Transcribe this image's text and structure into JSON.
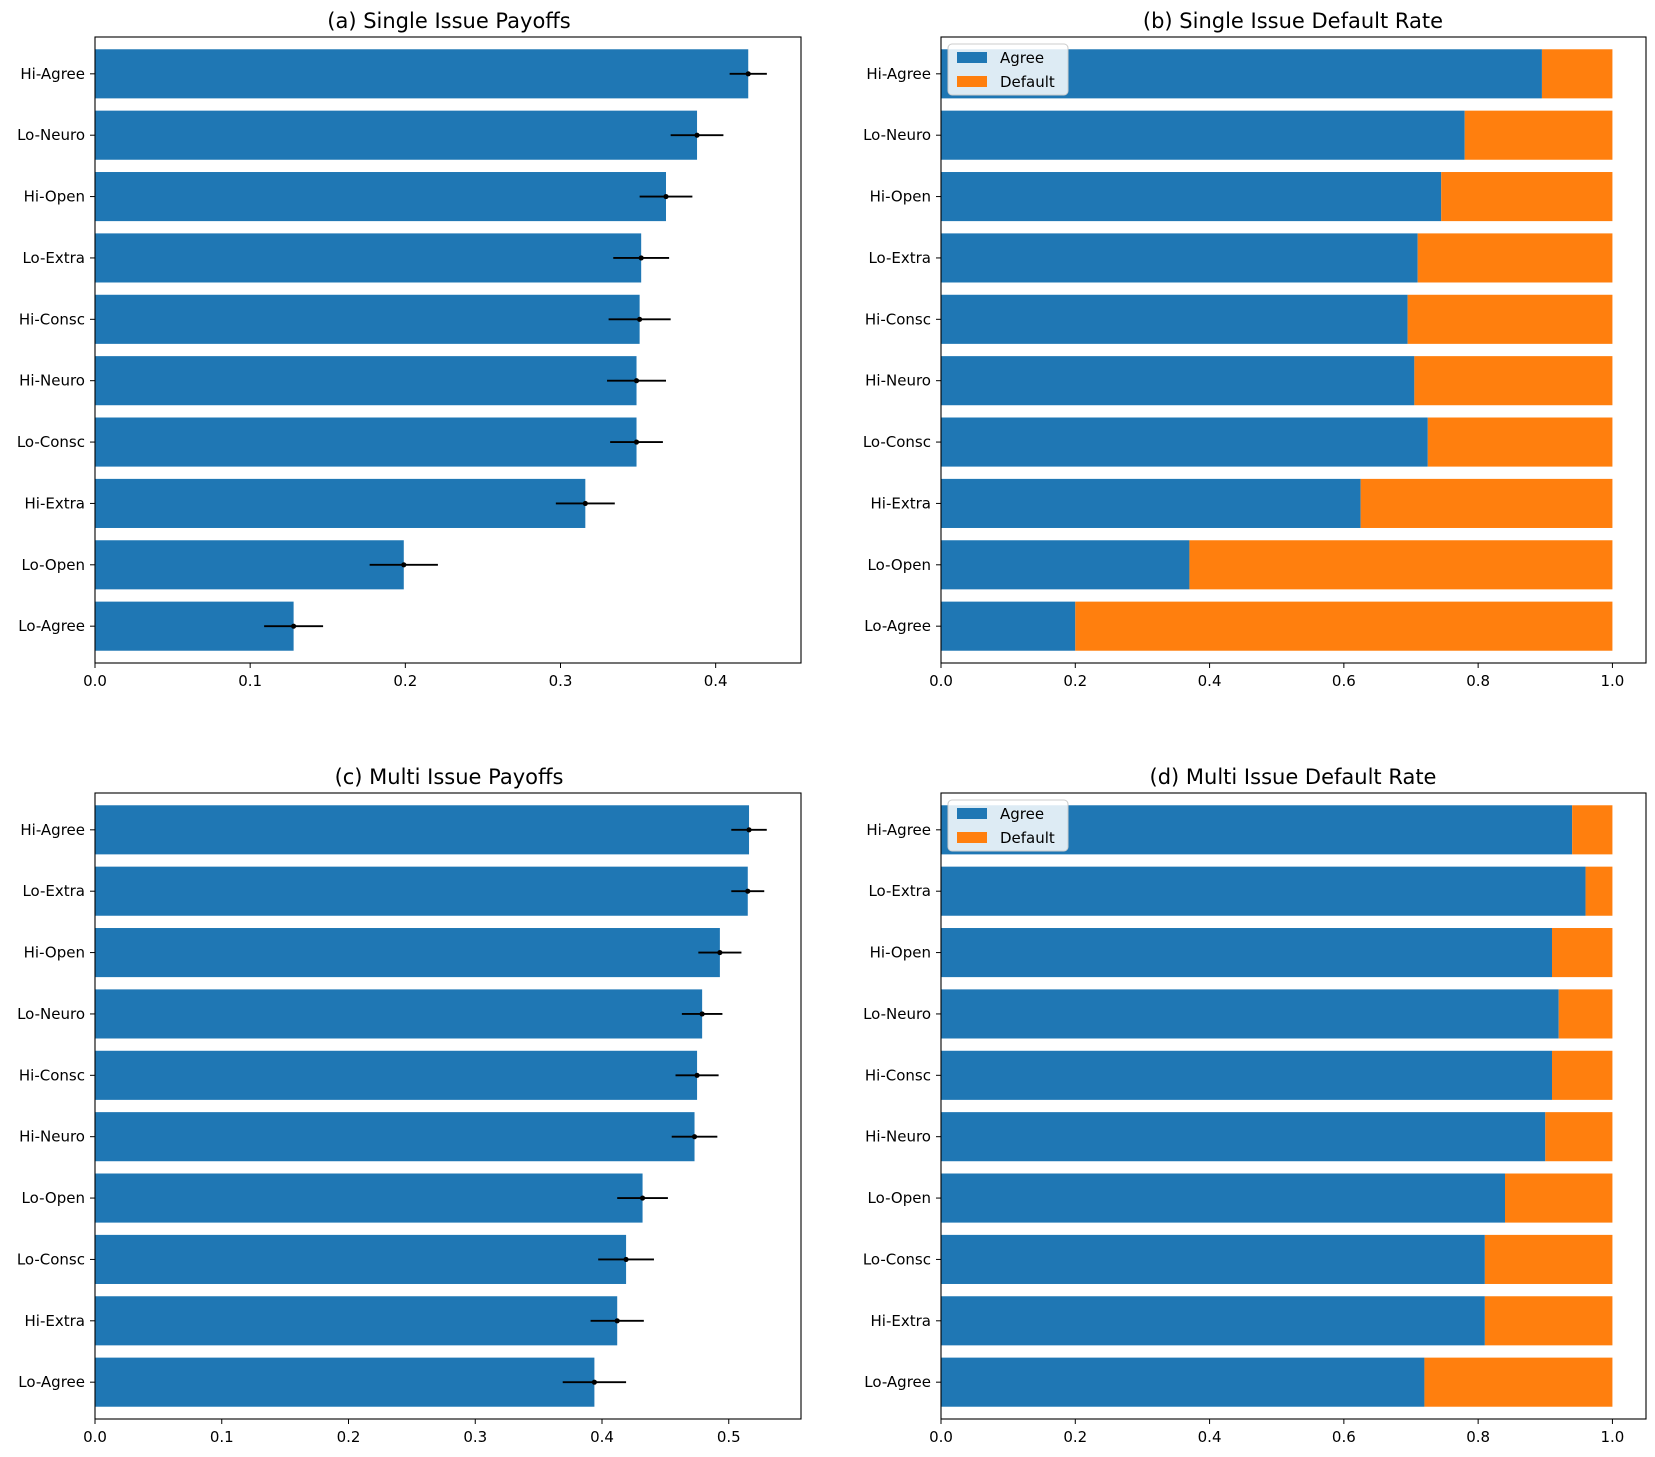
{
  "colors": {
    "agree": "#1f77b4",
    "default": "#ff7f0e",
    "error": "#000000"
  },
  "chart_data": [
    {
      "type": "bar",
      "orientation": "horizontal",
      "title": "(a) Single Issue Payoffs",
      "categories": [
        "Hi-Agree",
        "Lo-Neuro",
        "Hi-Open",
        "Lo-Extra",
        "Hi-Consc",
        "Hi-Neuro",
        "Lo-Consc",
        "Hi-Extra",
        "Lo-Open",
        "Lo-Agree"
      ],
      "values": [
        0.421,
        0.388,
        0.368,
        0.352,
        0.351,
        0.349,
        0.349,
        0.316,
        0.199,
        0.128
      ],
      "errors": [
        0.012,
        0.017,
        0.017,
        0.018,
        0.02,
        0.019,
        0.017,
        0.019,
        0.022,
        0.019
      ],
      "xlim": [
        0,
        0.455
      ],
      "xticks": [
        0.0,
        0.1,
        0.2,
        0.3,
        0.4
      ],
      "xtick_labels": [
        "0.0",
        "0.1",
        "0.2",
        "0.3",
        "0.4"
      ],
      "xlabel": "",
      "ylabel": ""
    },
    {
      "type": "bar",
      "orientation": "horizontal",
      "stacked": true,
      "title": "(b) Single Issue Default Rate",
      "categories": [
        "Hi-Agree",
        "Lo-Neuro",
        "Hi-Open",
        "Lo-Extra",
        "Hi-Consc",
        "Hi-Neuro",
        "Lo-Consc",
        "Hi-Extra",
        "Lo-Open",
        "Lo-Agree"
      ],
      "series": [
        {
          "name": "Agree",
          "values": [
            0.895,
            0.78,
            0.745,
            0.71,
            0.695,
            0.705,
            0.725,
            0.625,
            0.37,
            0.2
          ]
        },
        {
          "name": "Default",
          "values": [
            0.105,
            0.22,
            0.255,
            0.29,
            0.305,
            0.295,
            0.275,
            0.375,
            0.63,
            0.8
          ]
        }
      ],
      "legend": [
        "Agree",
        "Default"
      ],
      "legend_position": "top-left",
      "xlim": [
        0,
        1.05
      ],
      "xticks": [
        0.0,
        0.2,
        0.4,
        0.6,
        0.8,
        1.0
      ],
      "xtick_labels": [
        "0.0",
        "0.2",
        "0.4",
        "0.6",
        "0.8",
        "1.0"
      ],
      "xlabel": "",
      "ylabel": ""
    },
    {
      "type": "bar",
      "orientation": "horizontal",
      "title": "(c) Multi Issue Payoffs",
      "categories": [
        "Hi-Agree",
        "Lo-Extra",
        "Hi-Open",
        "Lo-Neuro",
        "Hi-Consc",
        "Hi-Neuro",
        "Lo-Open",
        "Lo-Consc",
        "Hi-Extra",
        "Lo-Agree"
      ],
      "values": [
        0.516,
        0.515,
        0.493,
        0.479,
        0.475,
        0.473,
        0.432,
        0.419,
        0.412,
        0.394
      ],
      "errors": [
        0.014,
        0.013,
        0.017,
        0.016,
        0.017,
        0.018,
        0.02,
        0.022,
        0.021,
        0.025
      ],
      "xlim": [
        0,
        0.557
      ],
      "xticks": [
        0.0,
        0.1,
        0.2,
        0.3,
        0.4,
        0.5
      ],
      "xtick_labels": [
        "0.0",
        "0.1",
        "0.2",
        "0.3",
        "0.4",
        "0.5"
      ],
      "xlabel": "",
      "ylabel": ""
    },
    {
      "type": "bar",
      "orientation": "horizontal",
      "stacked": true,
      "title": "(d) Multi Issue Default Rate",
      "categories": [
        "Hi-Agree",
        "Lo-Extra",
        "Hi-Open",
        "Lo-Neuro",
        "Hi-Consc",
        "Hi-Neuro",
        "Lo-Open",
        "Lo-Consc",
        "Hi-Extra",
        "Lo-Agree"
      ],
      "series": [
        {
          "name": "Agree",
          "values": [
            0.94,
            0.96,
            0.91,
            0.92,
            0.91,
            0.9,
            0.84,
            0.81,
            0.81,
            0.72
          ]
        },
        {
          "name": "Default",
          "values": [
            0.06,
            0.04,
            0.09,
            0.08,
            0.09,
            0.1,
            0.16,
            0.19,
            0.19,
            0.28
          ]
        }
      ],
      "legend": [
        "Agree",
        "Default"
      ],
      "legend_position": "top-left",
      "xlim": [
        0,
        1.05
      ],
      "xticks": [
        0.0,
        0.2,
        0.4,
        0.6,
        0.8,
        1.0
      ],
      "xtick_labels": [
        "0.0",
        "0.2",
        "0.4",
        "0.6",
        "0.8",
        "1.0"
      ],
      "xlabel": "",
      "ylabel": ""
    }
  ]
}
